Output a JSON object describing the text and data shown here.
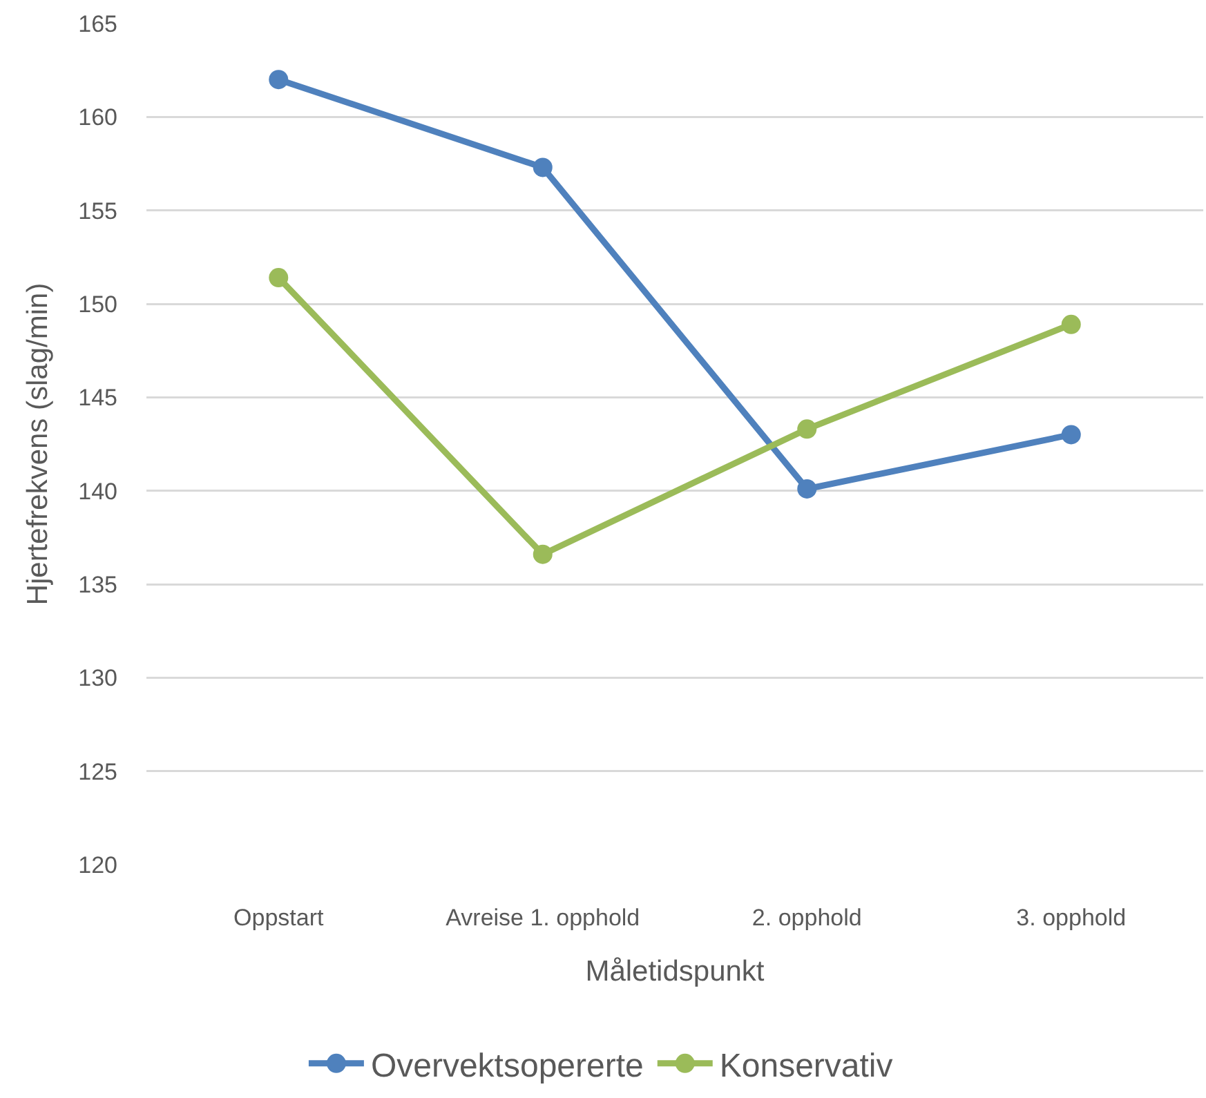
{
  "chart_data": {
    "type": "line",
    "xlabel": "Måletidspunkt",
    "ylabel": "Hjertefrekvens (slag/min)",
    "categories": [
      "Oppstart",
      "Avreise 1. opphold",
      "2. opphold",
      "3. opphold"
    ],
    "series": [
      {
        "name": "Overvektsopererte",
        "color": "#4f81bd",
        "values": [
          162.0,
          157.3,
          140.1,
          143.0
        ]
      },
      {
        "name": "Konservativ",
        "color": "#9bbb59",
        "values": [
          151.4,
          136.6,
          143.3,
          148.9
        ]
      }
    ],
    "ylim": [
      120,
      165
    ],
    "yticks": [
      120,
      125,
      130,
      135,
      140,
      145,
      150,
      155,
      160,
      165
    ],
    "grid": "y",
    "legend": "bottom",
    "marker": "circle",
    "line_style": "solid"
  }
}
